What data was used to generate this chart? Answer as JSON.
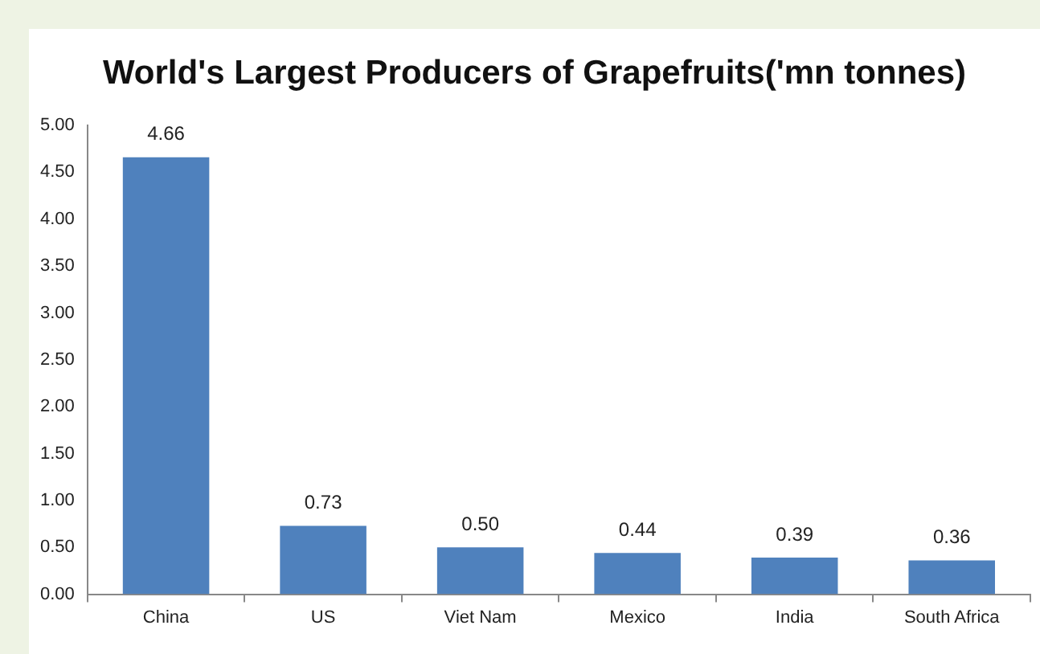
{
  "chart_data": {
    "type": "bar",
    "title": "World's Largest Producers of Grapefruits('mn tonnes)",
    "categories": [
      "China",
      "US",
      "Viet Nam",
      "Mexico",
      "India",
      "South Africa"
    ],
    "values": [
      4.66,
      0.73,
      0.5,
      0.44,
      0.39,
      0.36
    ],
    "value_labels": [
      "4.66",
      "0.73",
      "0.50",
      "0.44",
      "0.39",
      "0.36"
    ],
    "color": "#4f81bd",
    "ylim": [
      0,
      5
    ],
    "yticks": [
      {
        "value": 0,
        "label": "0.00"
      },
      {
        "value": 0.5,
        "label": "0.50"
      },
      {
        "value": 1,
        "label": "1.00"
      },
      {
        "value": 1.5,
        "label": "1.50"
      },
      {
        "value": 2,
        "label": "2.00"
      },
      {
        "value": 2.5,
        "label": "2.50"
      },
      {
        "value": 3,
        "label": "3.00"
      },
      {
        "value": 3.5,
        "label": "3.50"
      },
      {
        "value": 4,
        "label": "4.00"
      },
      {
        "value": 4.5,
        "label": "4.50"
      },
      {
        "value": 5,
        "label": "5.00"
      }
    ],
    "grid": false,
    "legend": false
  }
}
